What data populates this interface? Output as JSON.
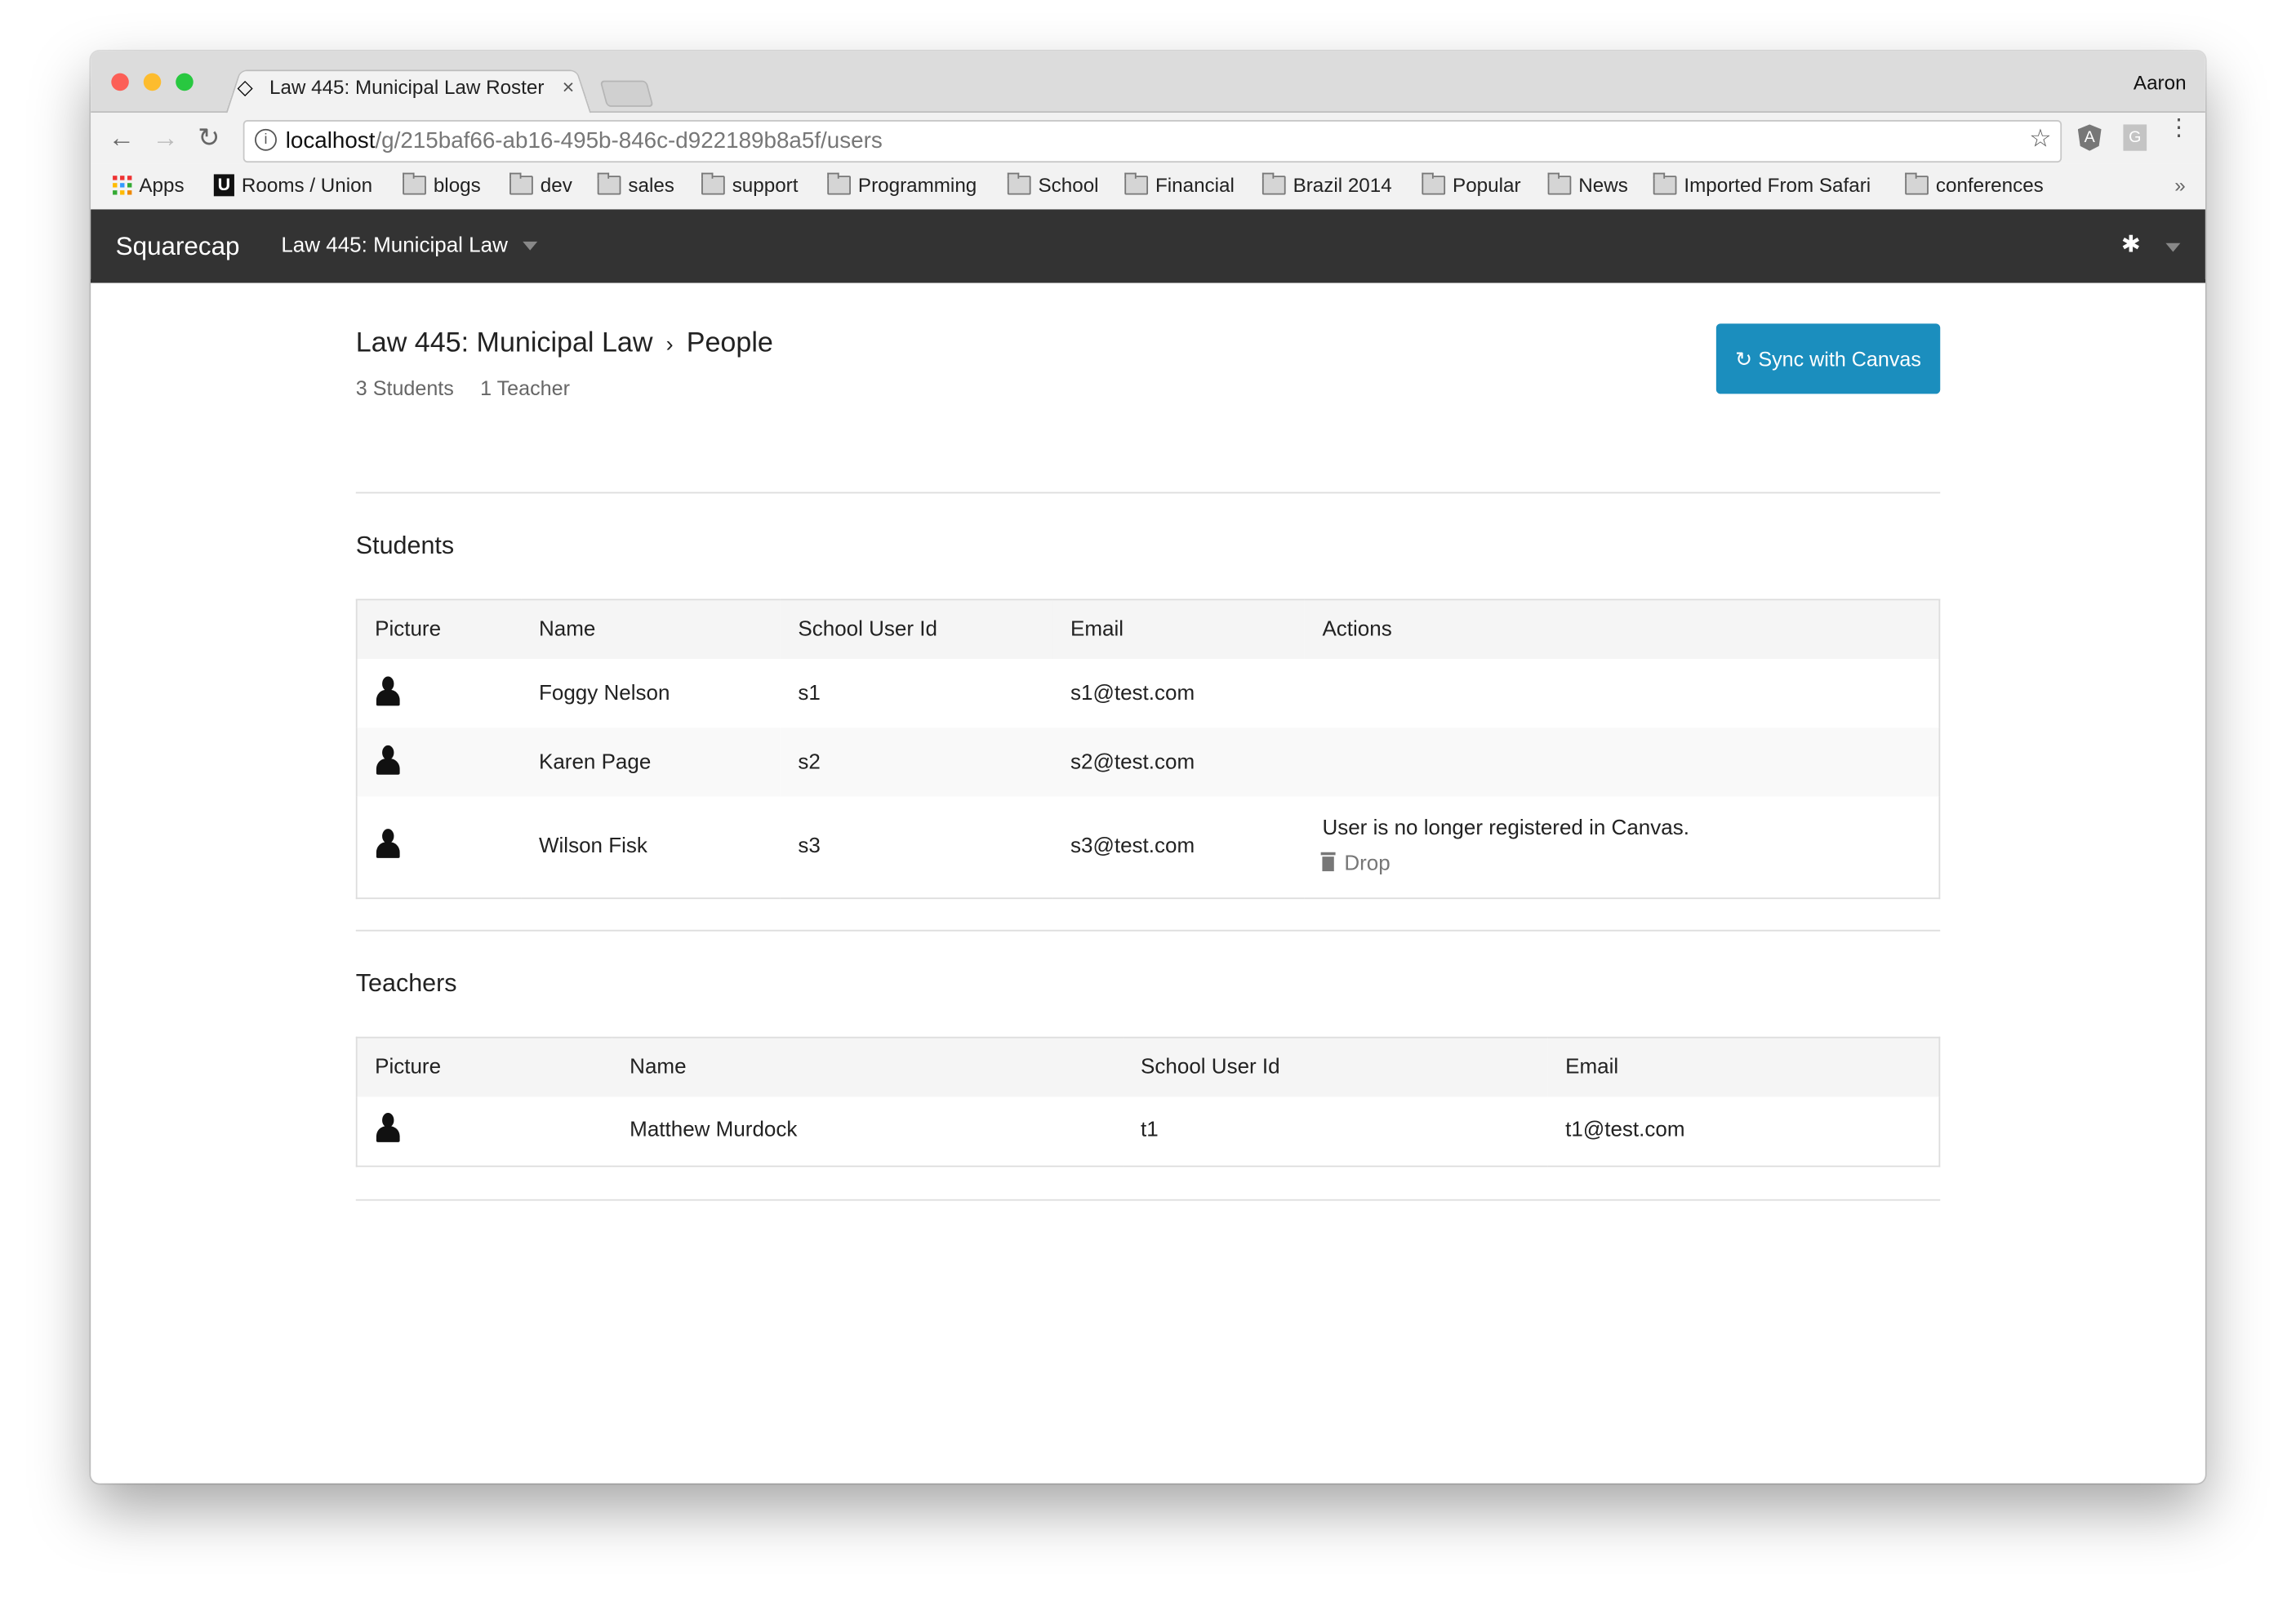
{
  "browser": {
    "tab_title": "Law 445: Municipal Law Roster",
    "profile_name": "Aaron",
    "url_host": "localhost",
    "url_path": "/g/215baf66-ab16-495b-846c-d922189b8a5f/users",
    "bookmarks": [
      "Apps",
      "Rooms / Union",
      "blogs",
      "dev",
      "sales",
      "support",
      "Programming",
      "School",
      "Financial",
      "Brazil 2014",
      "Popular",
      "News",
      "Imported From Safari",
      "conferences"
    ],
    "overflow": "»"
  },
  "navbar": {
    "brand": "Squarecap",
    "course": "Law 445: Municipal Law"
  },
  "header": {
    "crumb_course": "Law 445: Municipal Law",
    "crumb_sep": "›",
    "crumb_page": "People",
    "students_count": "3 Students",
    "teachers_count": "1 Teacher",
    "sync_label": "Sync with Canvas"
  },
  "students": {
    "title": "Students",
    "columns": [
      "Picture",
      "Name",
      "School User Id",
      "Email",
      "Actions"
    ],
    "rows": [
      {
        "name": "Foggy Nelson",
        "id": "s1",
        "email": "s1@test.com",
        "action_note": "",
        "action": ""
      },
      {
        "name": "Karen Page",
        "id": "s2",
        "email": "s2@test.com",
        "action_note": "",
        "action": ""
      },
      {
        "name": "Wilson Fisk",
        "id": "s3",
        "email": "s3@test.com",
        "action_note": "User is no longer registered in Canvas.",
        "action": "Drop"
      }
    ]
  },
  "teachers": {
    "title": "Teachers",
    "columns": [
      "Picture",
      "Name",
      "School User Id",
      "Email"
    ],
    "rows": [
      {
        "name": "Matthew Murdock",
        "id": "t1",
        "email": "t1@test.com"
      }
    ]
  },
  "colors": {
    "navbar": "#333333",
    "accent": "#1b8ebe"
  }
}
